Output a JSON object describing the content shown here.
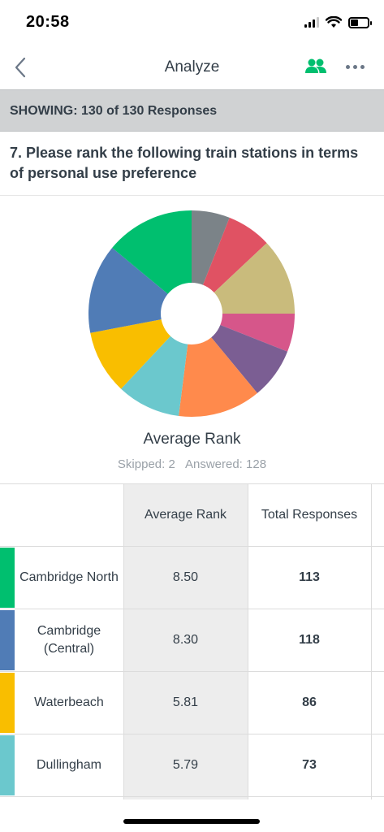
{
  "status": {
    "time": "20:58",
    "battery_level": 0.45
  },
  "nav": {
    "title": "Analyze",
    "back_icon": "chevron-left-icon",
    "people_icon": "people-icon",
    "more_icon": "more-icon",
    "accent": "#00bf6f"
  },
  "showing": {
    "text": "SHOWING: 130 of 130 Responses"
  },
  "question": {
    "text": "7. Please rank the following train stations in terms of personal use preference"
  },
  "chart_data": {
    "type": "pie",
    "title": "Average Rank",
    "style": "donut",
    "slices": [
      {
        "label": "",
        "value": 6,
        "color": "#7b8388"
      },
      {
        "label": "",
        "value": 7,
        "color": "#e05263"
      },
      {
        "label": "",
        "value": 12,
        "color": "#c9bb7c"
      },
      {
        "label": "",
        "value": 6,
        "color": "#d6568a"
      },
      {
        "label": "",
        "value": 8,
        "color": "#7b5e93"
      },
      {
        "label": "",
        "value": 13,
        "color": "#ff8a4c"
      },
      {
        "label": "",
        "value": 10,
        "color": "#6bc8cd"
      },
      {
        "label": "",
        "value": 10,
        "color": "#f9be00"
      },
      {
        "label": "",
        "value": 14,
        "color": "#507cb6"
      },
      {
        "label": "",
        "value": 14,
        "color": "#00bf6f"
      }
    ]
  },
  "stats": {
    "skipped": "Skipped: 2",
    "answered": "Answered: 128"
  },
  "table": {
    "headers": {
      "avg": "Average Rank",
      "total": "Total Responses"
    },
    "rows": [
      {
        "name": "Cambridge North",
        "avg": "8.50",
        "total": "113",
        "color": "#00bf6f"
      },
      {
        "name": "Cambridge (Central)",
        "avg": "8.30",
        "total": "118",
        "color": "#507cb6"
      },
      {
        "name": "Waterbeach",
        "avg": "5.81",
        "total": "86",
        "color": "#f9be00"
      },
      {
        "name": "Dullingham",
        "avg": "5.79",
        "total": "73",
        "color": "#6bc8cd"
      }
    ]
  }
}
